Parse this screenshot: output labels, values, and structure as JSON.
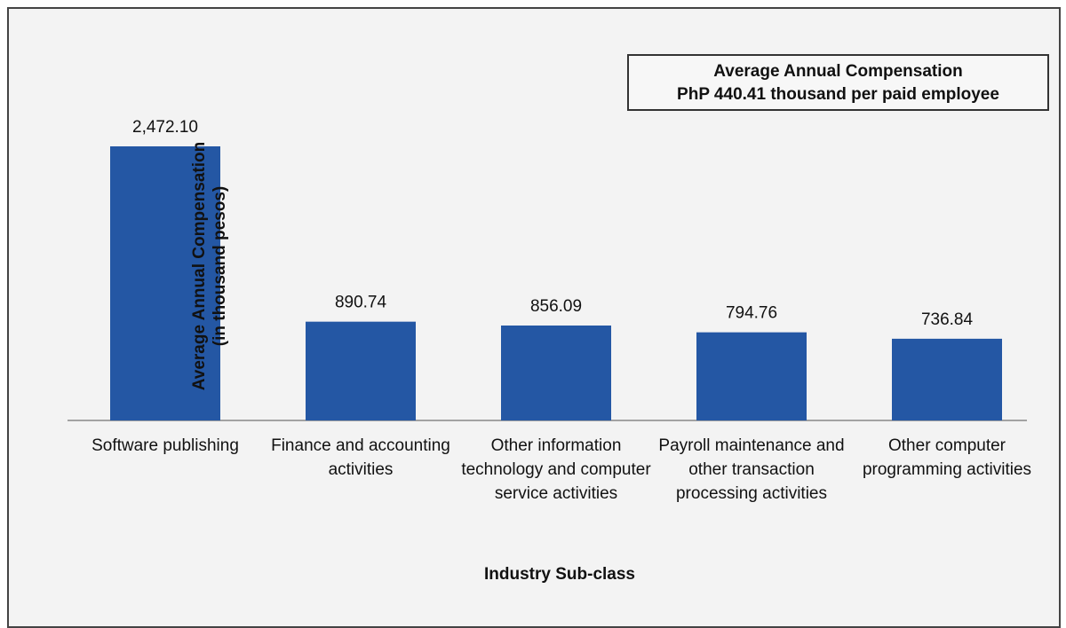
{
  "chart_data": {
    "type": "bar",
    "y_label": [
      "Average Annual Compensation",
      "(in thousand pesos)"
    ],
    "x_label": "Industry Sub-class",
    "annotation": [
      "Average Annual Compensation",
      "PhP 440.41 thousand per paid employee"
    ],
    "categories": [
      "Software publishing",
      "Finance and accounting activities",
      "Other information technology and computer service activities",
      "Payroll maintenance and other transaction processing activities",
      "Other computer programming activities"
    ],
    "values": [
      2472.1,
      890.74,
      856.09,
      794.76,
      736.84
    ],
    "value_labels": [
      "2,472.10",
      "890.74",
      "856.09",
      "794.76",
      "736.84"
    ],
    "color": "#2457a4",
    "ylim": [
      0,
      2800
    ]
  }
}
